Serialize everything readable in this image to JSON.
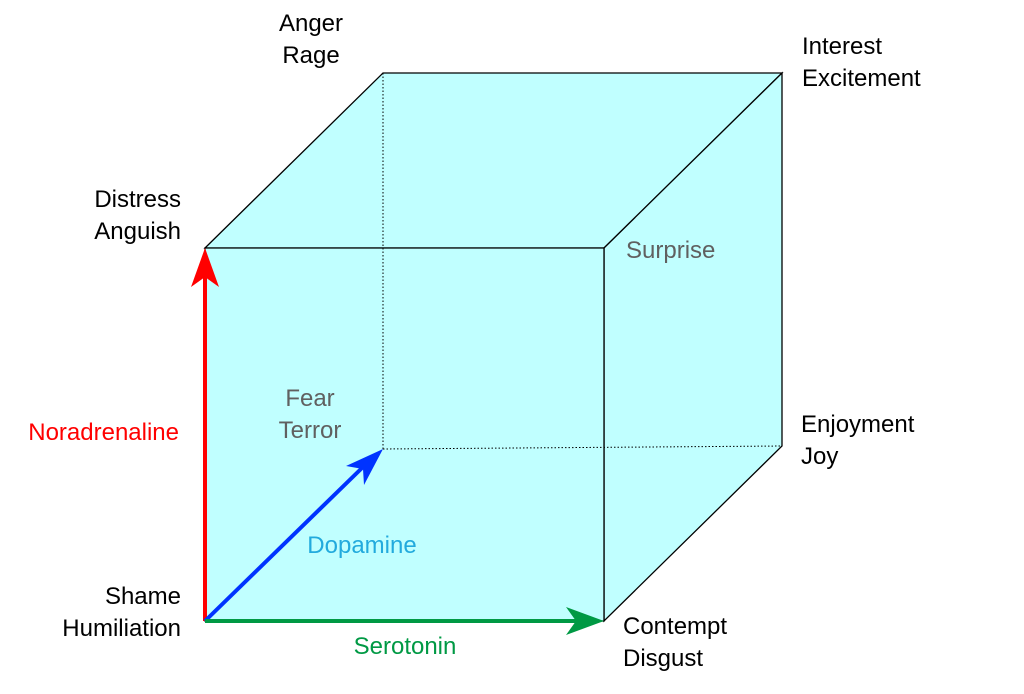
{
  "colors": {
    "face_fill": "#c0ffff",
    "edge": "#000000",
    "noradrenaline": "#ff0000",
    "dopamine": "#0033ff",
    "serotonin": "#009944",
    "dopamine_label": "#22aadd",
    "hidden_label": "#606060"
  },
  "axes": {
    "noradrenaline": "Noradrenaline",
    "dopamine": "Dopamine",
    "serotonin": "Serotonin"
  },
  "vertices": {
    "shame": {
      "line1": "Shame",
      "line2": "Humiliation"
    },
    "contempt": {
      "line1": "Contempt",
      "line2": "Disgust"
    },
    "distress": {
      "line1": "Distress",
      "line2": "Anguish"
    },
    "surprise": {
      "line1": "Surprise"
    },
    "fear": {
      "line1": "Fear",
      "line2": "Terror"
    },
    "enjoyment": {
      "line1": "Enjoyment",
      "line2": "Joy"
    },
    "anger": {
      "line1": "Anger",
      "line2": "Rage"
    },
    "interest": {
      "line1": "Interest",
      "line2": "Excitement"
    }
  }
}
